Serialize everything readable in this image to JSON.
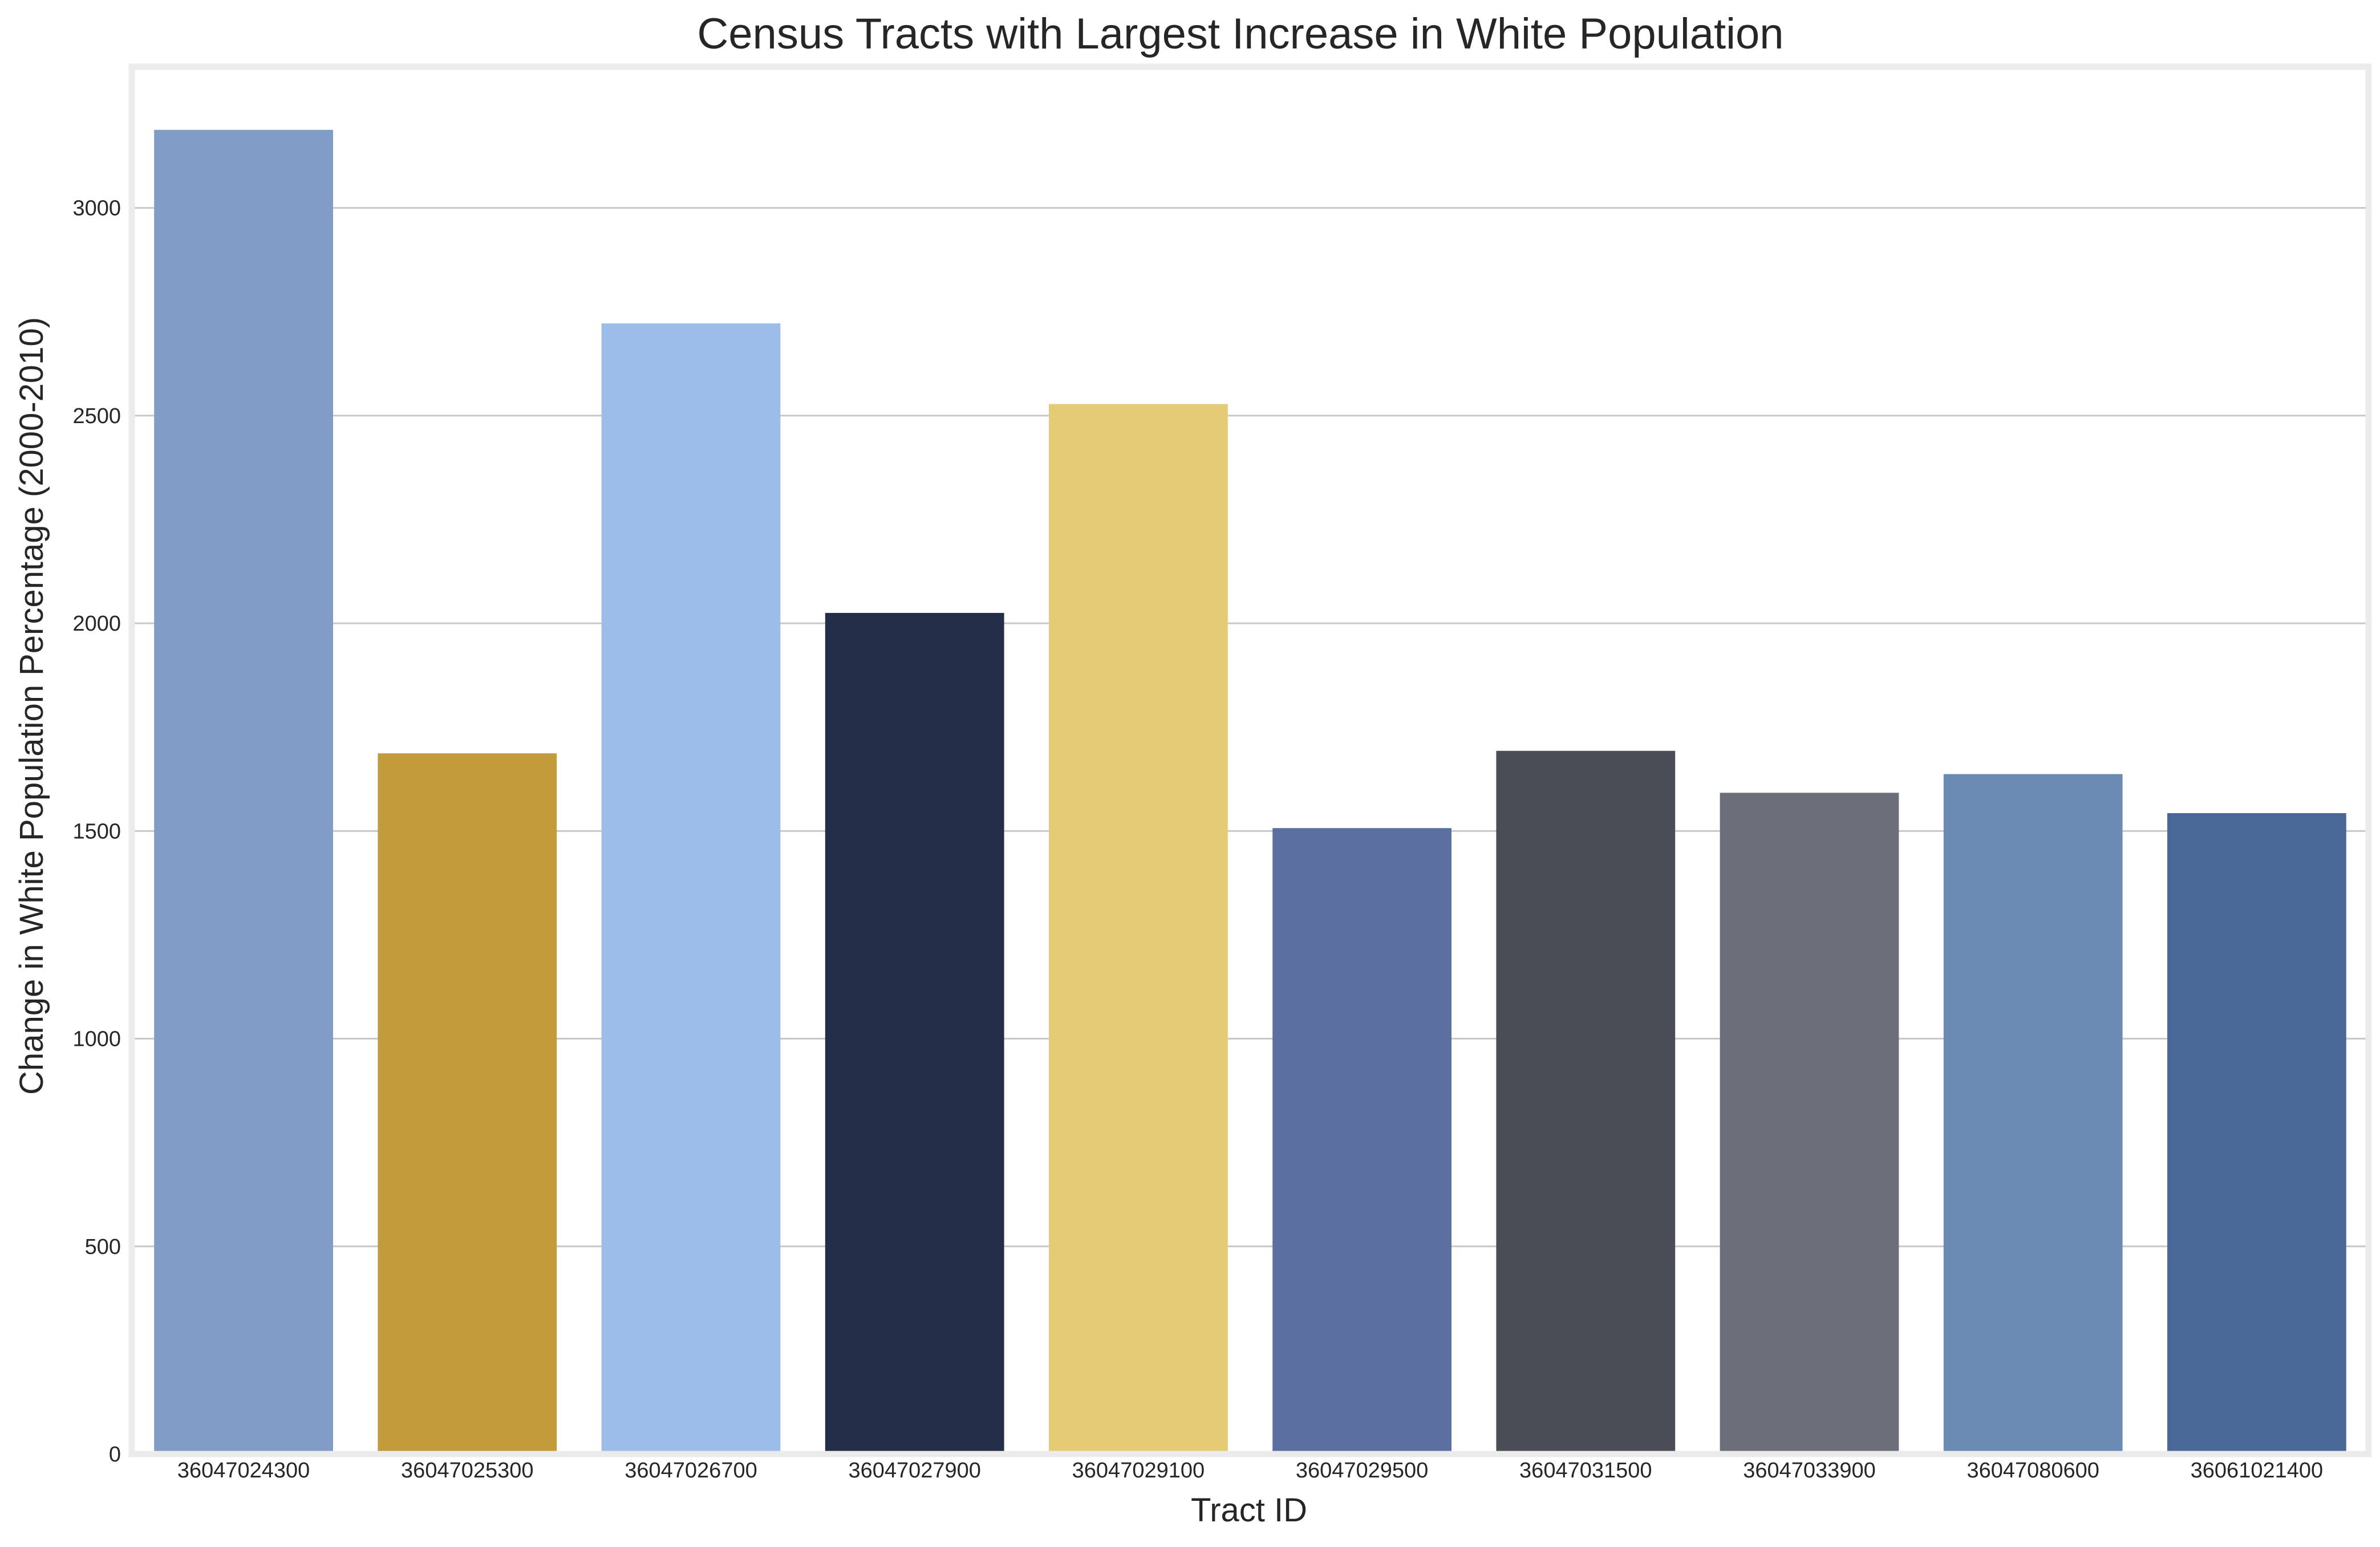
{
  "chart_data": {
    "type": "bar",
    "title": "Census Tracts with Largest Increase in White Population",
    "xlabel": "Tract ID",
    "ylabel": "Change in White Population Percentage (2000-2010)",
    "categories": [
      "36047024300",
      "36047025300",
      "36047026700",
      "36047027900",
      "36047029100",
      "36047029500",
      "36047031500",
      "36047033900",
      "36047080600",
      "36061021400"
    ],
    "values": [
      3188,
      1687,
      2722,
      2025,
      2528,
      1507,
      1693,
      1592,
      1637,
      1543
    ],
    "colors": [
      "#7f9dc7",
      "#c29c3b",
      "#9dbde9",
      "#222d48",
      "#e6cb76",
      "#5a6f9f",
      "#4a4d56",
      "#6b6f7a",
      "#6b8bb4",
      "#4a6897"
    ],
    "yticks": [
      "0",
      "500",
      "1000",
      "1500",
      "2000",
      "2500",
      "3000"
    ],
    "ylim": [
      0,
      3340
    ],
    "grid": true,
    "legend": "none"
  }
}
